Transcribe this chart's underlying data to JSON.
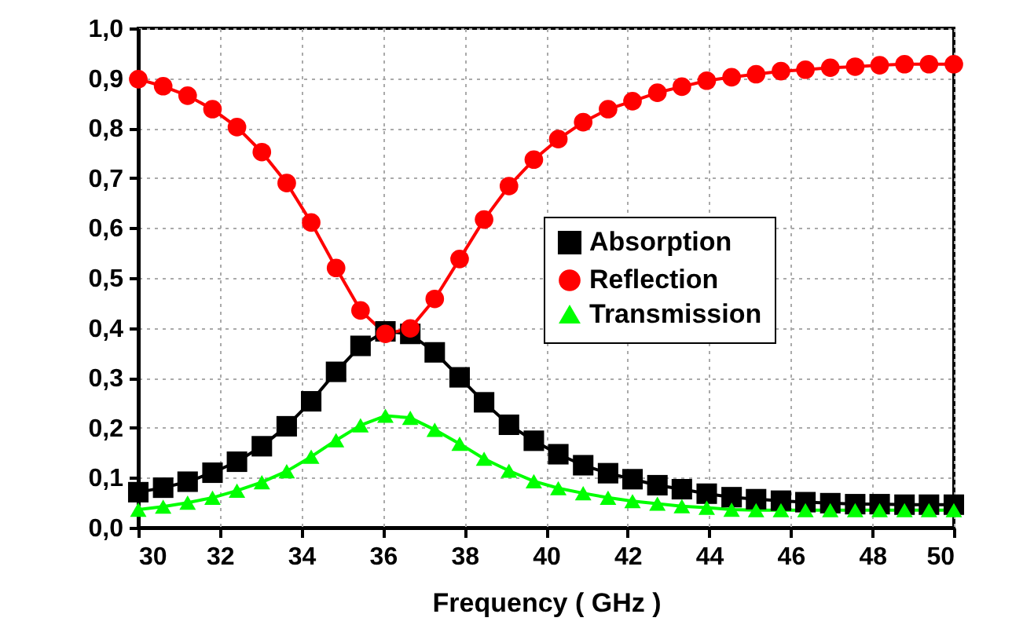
{
  "chart_data": {
    "type": "line",
    "xlabel": "Frequency ( GHz )",
    "x": [
      30,
      30.61,
      31.21,
      31.82,
      32.42,
      33.03,
      33.64,
      34.24,
      34.85,
      35.45,
      36.06,
      36.67,
      37.27,
      37.88,
      38.48,
      39.09,
      39.7,
      40.3,
      40.91,
      41.52,
      42.12,
      42.73,
      43.33,
      43.94,
      44.55,
      45.15,
      45.76,
      46.36,
      46.97,
      47.58,
      48.18,
      48.79,
      49.39,
      50
    ],
    "series": [
      {
        "name": "Absorption",
        "color": "#000000",
        "marker": "square",
        "values": [
          0.071,
          0.08,
          0.092,
          0.11,
          0.132,
          0.163,
          0.203,
          0.253,
          0.312,
          0.364,
          0.393,
          0.388,
          0.351,
          0.301,
          0.251,
          0.206,
          0.174,
          0.147,
          0.125,
          0.109,
          0.097,
          0.085,
          0.077,
          0.068,
          0.061,
          0.057,
          0.054,
          0.051,
          0.049,
          0.047,
          0.047,
          0.046,
          0.046,
          0.046
        ]
      },
      {
        "name": "Reflection",
        "color": "#ff0000",
        "marker": "circle",
        "values": [
          0.898,
          0.884,
          0.865,
          0.838,
          0.802,
          0.752,
          0.69,
          0.611,
          0.52,
          0.435,
          0.388,
          0.399,
          0.458,
          0.538,
          0.617,
          0.684,
          0.737,
          0.778,
          0.812,
          0.838,
          0.854,
          0.871,
          0.883,
          0.895,
          0.902,
          0.908,
          0.914,
          0.917,
          0.921,
          0.923,
          0.926,
          0.928,
          0.928,
          0.928
        ]
      },
      {
        "name": "Transmission",
        "color": "#00ff00",
        "marker": "triangle",
        "values": [
          0.036,
          0.042,
          0.05,
          0.06,
          0.074,
          0.091,
          0.113,
          0.142,
          0.175,
          0.205,
          0.224,
          0.22,
          0.196,
          0.168,
          0.138,
          0.114,
          0.093,
          0.079,
          0.069,
          0.06,
          0.053,
          0.048,
          0.043,
          0.04,
          0.036,
          0.035,
          0.035,
          0.035,
          0.035,
          0.035,
          0.035,
          0.035,
          0.035,
          0.035
        ]
      }
    ],
    "xlim": [
      30,
      50
    ],
    "xticks": [
      30,
      32,
      34,
      36,
      38,
      40,
      42,
      44,
      46,
      48,
      50
    ],
    "ylim": [
      0,
      1
    ],
    "yticks": [
      {
        "value": 0,
        "label": "0,0"
      },
      {
        "value": 0.1,
        "label": "0,1"
      },
      {
        "value": 0.2,
        "label": "0,2"
      },
      {
        "value": 0.3,
        "label": "0,3"
      },
      {
        "value": 0.4,
        "label": "0,4"
      },
      {
        "value": 0.5,
        "label": "0,5"
      },
      {
        "value": 0.6,
        "label": "0,6"
      },
      {
        "value": 0.7,
        "label": "0,7"
      },
      {
        "value": 0.8,
        "label": "0,8"
      },
      {
        "value": 0.9,
        "label": "0,9"
      },
      {
        "value": 1,
        "label": "1,0"
      }
    ],
    "grid": true,
    "legend": "right",
    "line_style": "solid"
  }
}
